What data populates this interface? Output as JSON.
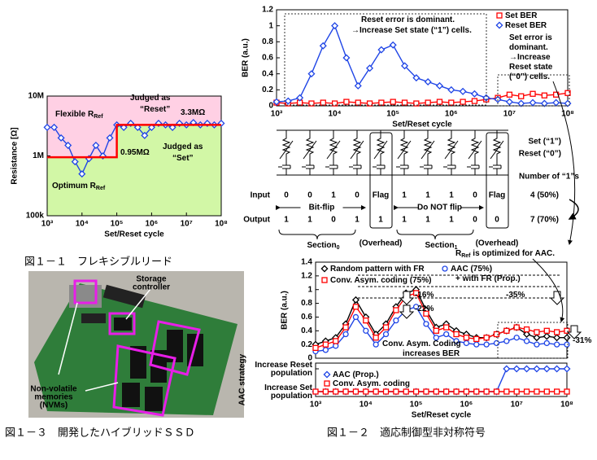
{
  "chart_data": [
    {
      "type": "line",
      "xlog": true,
      "ylog": true,
      "xlim": [
        1000,
        100000000
      ],
      "ylim": [
        100000,
        10000000
      ],
      "xticks": [
        {
          "value": 1000,
          "label": "10³"
        },
        {
          "value": 10000,
          "label": "10⁴"
        },
        {
          "value": 100000,
          "label": "10⁵"
        },
        {
          "value": 1000000,
          "label": "10⁶"
        },
        {
          "value": 10000000,
          "label": "10⁷"
        },
        {
          "value": 100000000,
          "label": "10⁸"
        }
      ],
      "yticks": [
        {
          "value": 100000,
          "label": "100k"
        },
        {
          "value": 1000000,
          "label": "1M"
        },
        {
          "value": 10000000,
          "label": "10M"
        }
      ],
      "xlabel": "Set/Reset cycle",
      "ylabel": "Resistance [Ω]",
      "region_colors": {
        "above": "#ffd0e4",
        "below": "#d2f7a6"
      },
      "x": [
        1000,
        1585,
        2512,
        3981,
        6310,
        10000,
        15849,
        25119,
        39811,
        63096,
        100000,
        158489,
        251189,
        398107,
        630957,
        1000000,
        1584893,
        2511886,
        3981072,
        6309573,
        10000000,
        15848932,
        25118864,
        39810717,
        63095734,
        100000000
      ],
      "series": [
        {
          "name": [
            "Optimum R",
            "Ref"
          ],
          "color": "#1f45e6",
          "marker": "diamond",
          "values": [
            3000000,
            3000000,
            2000000,
            1500000,
            800000,
            500000,
            900000,
            1500000,
            1000000,
            2000000,
            3300000,
            3000000,
            3500000,
            3000000,
            2200000,
            3000000,
            3500000,
            3300000,
            3000000,
            3500000,
            3300000,
            3600000,
            3300000,
            3500000,
            3300000,
            3500000
          ]
        },
        {
          "name": [
            "Flexible R",
            "Ref"
          ],
          "color": "#ff0000",
          "marker": "none",
          "x": [
            1000,
            100000,
            100000,
            100000000
          ],
          "values": [
            950000,
            950000,
            3300000,
            3300000
          ]
        }
      ],
      "annotations": [
        {
          "text": [
            "Judged as"
          ],
          "color": "#000"
        },
        {
          "text": [
            "“Reset”"
          ],
          "color": "#000"
        },
        {
          "text": [
            "3.3MΩ"
          ],
          "color": "#ff0000"
        },
        {
          "text": [
            "0.95MΩ"
          ],
          "color": "#ff0000"
        },
        {
          "text": [
            "Judged as"
          ],
          "color": "#000"
        },
        {
          "text": [
            "“Set”"
          ],
          "color": "#000"
        }
      ]
    },
    {
      "type": "line",
      "xlog": true,
      "xlim": [
        1000,
        100000000
      ],
      "ylim": [
        0,
        1.2
      ],
      "xticks": [
        {
          "value": 1000,
          "label": "10³"
        },
        {
          "value": 10000,
          "label": "10⁴"
        },
        {
          "value": 100000,
          "label": "10⁵"
        },
        {
          "value": 1000000,
          "label": "10⁶"
        },
        {
          "value": 10000000,
          "label": "10⁷"
        },
        {
          "value": 100000000,
          "label": "10⁸"
        }
      ],
      "yticks": [
        0,
        0.2,
        0.4,
        0.6,
        0.8,
        1,
        1.2
      ],
      "xlabel": "Set/Reset cycle",
      "ylabel": "BER (a.u.)",
      "x": [
        1000,
        1585,
        2512,
        3981,
        6310,
        10000,
        15849,
        25119,
        39811,
        63096,
        100000,
        158489,
        251189,
        398107,
        630957,
        1000000,
        1584893,
        2511886,
        3981072,
        6309573,
        10000000,
        15848932,
        25118864,
        39810717,
        63095734,
        100000000
      ],
      "series": [
        {
          "name": [
            "Set BER"
          ],
          "color": "#ff0000",
          "marker": "square",
          "values": [
            0.04,
            0.03,
            0.04,
            0.03,
            0.04,
            0.03,
            0.05,
            0.04,
            0.03,
            0.04,
            0.05,
            0.04,
            0.03,
            0.04,
            0.05,
            0.04,
            0.05,
            0.06,
            0.08,
            0.1,
            0.14,
            0.12,
            0.15,
            0.13,
            0.14,
            0.16
          ]
        },
        {
          "name": [
            "Reset BER"
          ],
          "color": "#1f45e6",
          "marker": "diamond",
          "values": [
            0.05,
            0.06,
            0.1,
            0.4,
            0.75,
            1,
            0.6,
            0.25,
            0.47,
            0.7,
            0.76,
            0.5,
            0.35,
            0.3,
            0.25,
            0.2,
            0.18,
            0.15,
            0.1,
            0.08,
            0.05,
            0.03,
            0.04,
            0.03,
            0.04,
            0.03
          ]
        }
      ],
      "annotations": [
        {
          "text": [
            "Reset error is dominant."
          ],
          "color": "#000"
        },
        {
          "text": [
            "→Increase Set state (“1”) cells."
          ],
          "color": "#ff0000"
        },
        {
          "text": [
            "Set error is"
          ],
          "color": "#000"
        },
        {
          "text": [
            "dominant."
          ],
          "color": "#000"
        },
        {
          "text": [
            "→Increase"
          ],
          "color": "#ff0000"
        },
        {
          "text": [
            "Reset state"
          ],
          "color": "#ff0000"
        },
        {
          "text": [
            "(“0”) cells."
          ],
          "color": "#ff0000"
        }
      ]
    },
    {
      "type": "line",
      "xlog": true,
      "xlim": [
        1000,
        100000000
      ],
      "ylim": [
        0,
        1.4
      ],
      "yticks": [
        0,
        0.2,
        0.4,
        0.6,
        0.8,
        1,
        1.2,
        1.4
      ],
      "ylabel": "BER (a.u.)",
      "x": [
        1000,
        1585,
        2512,
        3981,
        6310,
        10000,
        15849,
        25119,
        39811,
        63096,
        100000,
        158489,
        251189,
        398107,
        630957,
        1000000,
        1584893,
        2511886,
        3981072,
        6309573,
        10000000,
        15848932,
        25118864,
        39810717,
        63095734,
        100000000
      ],
      "series": [
        {
          "name": [
            "Random pattern with FR"
          ],
          "color": "#000000",
          "marker": "diamond",
          "values": [
            0.2,
            0.25,
            0.3,
            0.5,
            0.85,
            0.6,
            0.35,
            0.5,
            0.75,
            0.95,
            1,
            0.7,
            0.45,
            0.5,
            0.4,
            0.35,
            0.3,
            0.3,
            0.35,
            0.4,
            0.45,
            0.35,
            0.3,
            0.32,
            0.3,
            0.3
          ]
        },
        {
          "name": [
            "AAC (75%) + with FR (Prop.)"
          ],
          "color": "#1f45e6",
          "marker": "circle",
          "values": [
            0.1,
            0.12,
            0.18,
            0.35,
            0.6,
            0.4,
            0.2,
            0.35,
            0.55,
            0.7,
            0.75,
            0.5,
            0.3,
            0.35,
            0.25,
            0.22,
            0.2,
            0.2,
            0.22,
            0.25,
            0.3,
            0.25,
            0.2,
            0.22,
            0.2,
            0.2
          ]
        },
        {
          "name": [
            "Conv. Asym. coding (75%)"
          ],
          "color": "#ff0000",
          "marker": "square",
          "values": [
            0.15,
            0.2,
            0.25,
            0.45,
            0.75,
            0.55,
            0.3,
            0.45,
            0.7,
            0.9,
            0.95,
            0.65,
            0.4,
            0.45,
            0.35,
            0.3,
            0.28,
            0.3,
            0.35,
            0.4,
            0.45,
            0.42,
            0.38,
            0.4,
            0.38,
            0.4
          ]
        }
      ],
      "annotations": [
        {
          "text": [
            "-16%"
          ],
          "color": "#ff0000"
        },
        {
          "text": [
            "-22%"
          ],
          "color": "#ff0000"
        },
        {
          "text": [
            "-35%"
          ],
          "color": "#ff0000"
        },
        {
          "text": [
            "-31%"
          ],
          "color": "#ff0000"
        },
        {
          "text": [
            "Conv. Asym. Coding"
          ],
          "color": "#000"
        },
        {
          "text": [
            "increases BER"
          ],
          "color": "#000"
        },
        {
          "text": [
            "R",
            "Ref",
            " is optimized for AAC."
          ],
          "color": "#ff0000"
        }
      ]
    },
    {
      "type": "line",
      "xlog": true,
      "xlim": [
        1000,
        100000000
      ],
      "ylim": [
        0,
        1
      ],
      "xticks": [
        {
          "value": 1000,
          "label": "10³"
        },
        {
          "value": 10000,
          "label": "10⁴"
        },
        {
          "value": 100000,
          "label": "10⁵"
        },
        {
          "value": 1000000,
          "label": "10⁶"
        },
        {
          "value": 10000000,
          "label": "10⁷"
        },
        {
          "value": 100000000,
          "label": "10⁸"
        }
      ],
      "yticks": [
        {
          "value": 0,
          "label": "Increase Set population"
        },
        {
          "value": 1,
          "label": "Increase Reset population"
        }
      ],
      "xlabel": "Set/Reset cycle",
      "ylabel": "AAC strategy",
      "x": [
        1000,
        1585,
        2512,
        3981,
        6310,
        10000,
        15849,
        25119,
        39811,
        63096,
        100000,
        158489,
        251189,
        398107,
        630957,
        1000000,
        1584893,
        2511886,
        3981072,
        6309573,
        10000000,
        15848932,
        25118864,
        39810717,
        63095734,
        100000000
      ],
      "series": [
        {
          "name": [
            "AAC (Prop.)"
          ],
          "color": "#1f45e6",
          "marker": "diamond",
          "values": [
            0,
            0,
            0,
            0,
            0,
            0,
            0,
            0,
            0,
            0,
            0,
            0,
            0,
            0,
            0,
            0,
            0,
            0,
            0,
            1,
            1,
            1,
            1,
            1,
            1,
            1
          ]
        },
        {
          "name": [
            "Conv. Asym. coding"
          ],
          "color": "#ff0000",
          "marker": "square",
          "values": [
            0,
            0,
            0,
            0,
            0,
            0,
            0,
            0,
            0,
            0,
            0,
            0,
            0,
            0,
            0,
            0,
            0,
            0,
            0,
            0,
            0,
            0,
            0,
            0,
            0,
            0
          ]
        }
      ],
      "annotations": []
    }
  ],
  "diagram": {
    "state_labels": [
      "Set (“1”)",
      "Reset (“0”)"
    ],
    "count_header": "Number of “1”s",
    "input_label": "Input",
    "output_label": "Output",
    "sections": [
      {
        "name": [
          "Section",
          "0"
        ],
        "input": [
          0,
          0,
          1,
          0
        ],
        "output": [
          1,
          1,
          0,
          1
        ],
        "flag_output": 1,
        "operation": "Bit-flip"
      },
      {
        "name": [
          "Section",
          "1"
        ],
        "input": [
          1,
          1,
          1,
          0
        ],
        "output": [
          1,
          1,
          1,
          0
        ],
        "flag_output": 0,
        "operation": "Do NOT flip"
      }
    ],
    "flag_label": "Flag",
    "overhead_label": "(Overhead)",
    "counts": [
      "4 (50%)",
      "7 (70%)"
    ]
  },
  "photo": {
    "labels": [
      [
        "Storage",
        "controller"
      ],
      [
        "Non-volatile",
        "memories",
        "(NVMs)"
      ]
    ]
  },
  "captions": [
    "図１－１　フレキシブルリード",
    "図１－２　適応制御型非対称符号",
    "図１－３　開発したハイブリッドＳＳＤ"
  ]
}
